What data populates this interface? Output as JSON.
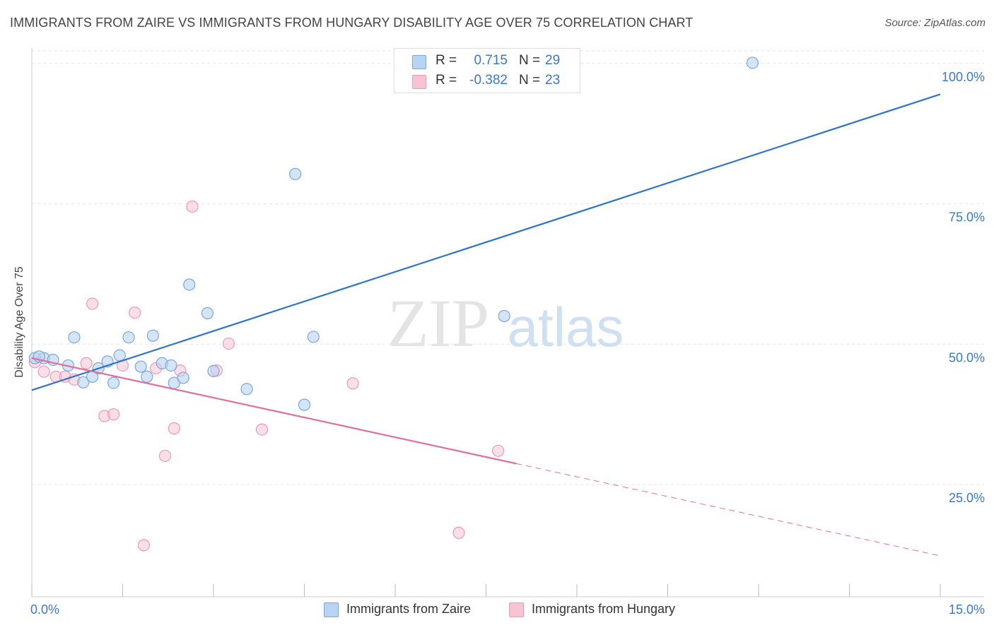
{
  "title": "IMMIGRANTS FROM ZAIRE VS IMMIGRANTS FROM HUNGARY DISABILITY AGE OVER 75 CORRELATION CHART",
  "source": "Source: ZipAtlas.com",
  "watermark": {
    "zip": "ZIP",
    "atlas": "atlas"
  },
  "legend": {
    "rows": [
      {
        "r_label": "R =",
        "r_value": "0.715",
        "n_label": "N =",
        "n_value": "29"
      },
      {
        "r_label": "R =",
        "r_value": "-0.382",
        "n_label": "N =",
        "n_value": "23"
      }
    ]
  },
  "bottom_legend": {
    "zaire": "Immigrants from Zaire",
    "hungary": "Immigrants from Hungary"
  },
  "colors": {
    "zaire_fill": "#b9d3f3",
    "zaire_stroke": "#7aa7dc",
    "zaire_line": "#2f74cc",
    "hungary_fill": "#f7c4d4",
    "hungary_stroke": "#eb9bb5",
    "hungary_line": "#e0709a",
    "axis_label": "#3a78c9",
    "grid": "#e3e3e3"
  },
  "chart_data": {
    "type": "scatter",
    "title": "IMMIGRANTS FROM ZAIRE VS IMMIGRANTS FROM HUNGARY DISABILITY AGE OVER 75 CORRELATION CHART",
    "xlabel": "",
    "ylabel": "Disability Age Over 75",
    "xlim": [
      0,
      15
    ],
    "ylim": [
      5,
      105
    ],
    "x_tick_labels": [
      {
        "value": 0,
        "label": "0.0%"
      },
      {
        "value": 15,
        "label": "15.0%"
      }
    ],
    "y_tick_labels": [
      {
        "value": 25,
        "label": "25.0%"
      },
      {
        "value": 50,
        "label": "50.0%"
      },
      {
        "value": 75,
        "label": "75.0%"
      },
      {
        "value": 100,
        "label": "100.0%"
      }
    ],
    "series": [
      {
        "name": "Immigrants from Zaire",
        "r": 0.715,
        "n": 29,
        "points": [
          [
            0.05,
            47.5
          ],
          [
            0.2,
            47.5
          ],
          [
            0.35,
            47.2
          ],
          [
            0.6,
            46.2
          ],
          [
            0.7,
            51.2
          ],
          [
            0.85,
            43.2
          ],
          [
            1.0,
            44.2
          ],
          [
            1.1,
            45.7
          ],
          [
            1.25,
            46.9
          ],
          [
            1.35,
            43.1
          ],
          [
            1.45,
            48.0
          ],
          [
            1.6,
            51.2
          ],
          [
            1.8,
            46.0
          ],
          [
            1.9,
            44.2
          ],
          [
            2.0,
            51.5
          ],
          [
            2.15,
            46.6
          ],
          [
            2.3,
            46.2
          ],
          [
            2.35,
            43.1
          ],
          [
            2.5,
            44.0
          ],
          [
            2.6,
            60.6
          ],
          [
            2.9,
            55.5
          ],
          [
            3.0,
            45.2
          ],
          [
            3.55,
            42.0
          ],
          [
            4.35,
            80.3
          ],
          [
            4.5,
            39.2
          ],
          [
            4.65,
            51.3
          ],
          [
            7.8,
            55.0
          ],
          [
            11.9,
            100.1
          ],
          [
            0.12,
            47.8
          ]
        ],
        "trend": {
          "x": [
            0,
            15
          ],
          "y": [
            41.8,
            94.5
          ],
          "dashed_from": null
        }
      },
      {
        "name": "Immigrants from Hungary",
        "r": -0.382,
        "n": 23,
        "points": [
          [
            0.05,
            46.8
          ],
          [
            0.2,
            45.1
          ],
          [
            0.4,
            44.2
          ],
          [
            0.55,
            44.2
          ],
          [
            0.7,
            43.7
          ],
          [
            0.9,
            46.6
          ],
          [
            1.0,
            57.2
          ],
          [
            1.2,
            37.2
          ],
          [
            1.35,
            37.5
          ],
          [
            1.5,
            46.2
          ],
          [
            1.7,
            55.6
          ],
          [
            1.85,
            14.2
          ],
          [
            2.05,
            45.7
          ],
          [
            2.2,
            30.1
          ],
          [
            2.35,
            35.0
          ],
          [
            2.45,
            45.3
          ],
          [
            2.65,
            74.5
          ],
          [
            3.05,
            45.3
          ],
          [
            3.25,
            50.1
          ],
          [
            3.8,
            34.8
          ],
          [
            5.3,
            43.0
          ],
          [
            7.05,
            16.4
          ],
          [
            7.7,
            31.0
          ]
        ],
        "trend": {
          "x": [
            0,
            15
          ],
          "y": [
            47.5,
            12.3
          ],
          "dashed_from": 8.0
        }
      }
    ]
  }
}
